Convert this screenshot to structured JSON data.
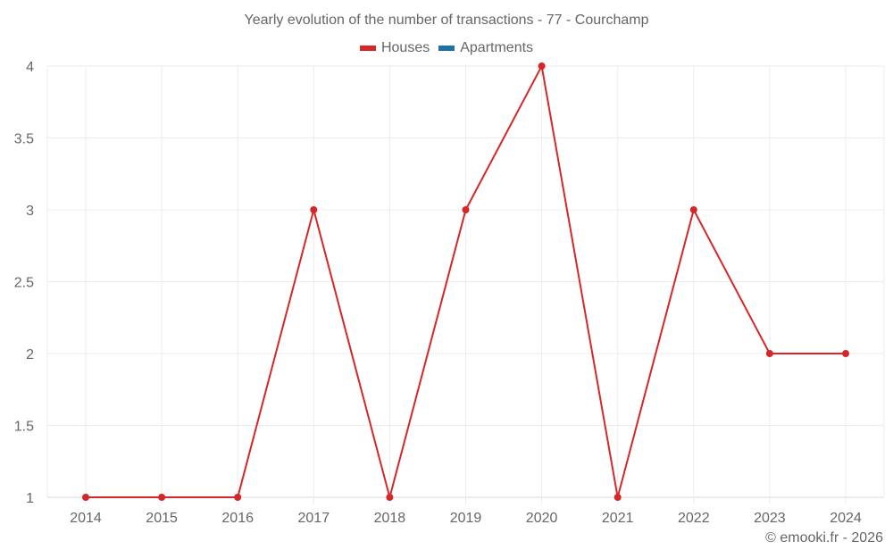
{
  "chart_data": {
    "type": "line",
    "title": "Yearly evolution of the number of transactions - 77 - Courchamp",
    "categories": [
      "2014",
      "2015",
      "2016",
      "2017",
      "2018",
      "2019",
      "2020",
      "2021",
      "2022",
      "2023",
      "2024"
    ],
    "series": [
      {
        "name": "Houses",
        "color": "#d62728",
        "values": [
          1,
          1,
          1,
          3,
          1,
          3,
          4,
          1,
          3,
          2,
          2
        ]
      },
      {
        "name": "Apartments",
        "color": "#1f6fa8",
        "values": []
      }
    ],
    "xlabel": "",
    "ylabel": "",
    "ylim": [
      1,
      4
    ],
    "yticks": [
      "1",
      "1.5",
      "2",
      "2.5",
      "3",
      "3.5",
      "4"
    ],
    "grid": true,
    "legend_position": "top"
  },
  "credit": "© emooki.fr - 2026"
}
